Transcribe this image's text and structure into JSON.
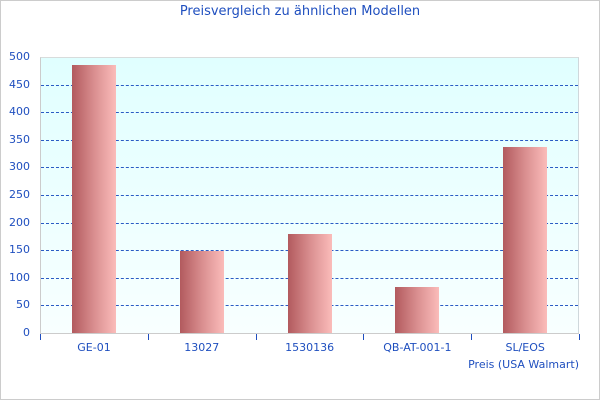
{
  "chart_data": {
    "type": "bar",
    "title": "Preisvergleich zu ähnlichen Modellen",
    "categories": [
      "GE-01",
      "13027",
      "1530136",
      "QB-AT-001-1",
      "SL/EOS"
    ],
    "series": [
      {
        "name": "Preis (USA Walmart)",
        "values": [
          485,
          149,
          179,
          83,
          337
        ]
      }
    ],
    "xlabel": "Preis (USA Walmart)",
    "ylabel": "",
    "ylim": [
      0,
      500
    ],
    "yticks": [
      0,
      50,
      100,
      150,
      200,
      250,
      300,
      350,
      400,
      450,
      500
    ],
    "grid": true,
    "legend": "none",
    "colors": {
      "bar_dark": "#b25a5e",
      "bar_light": "#fbbcba",
      "text": "#1f4fbf",
      "grid": "#2a5bc4",
      "plot_bg_top": "#e0ffff"
    }
  },
  "labels": {
    "title": "Preisvergleich zu ähnlichen Modellen",
    "x_axis_title": "Preis (USA Walmart)",
    "yticks": [
      "0",
      "50",
      "100",
      "150",
      "200",
      "250",
      "300",
      "350",
      "400",
      "450",
      "500"
    ],
    "categories": [
      "GE-01",
      "13027",
      "1530136",
      "QB-AT-001-1",
      "SL/EOS"
    ]
  }
}
